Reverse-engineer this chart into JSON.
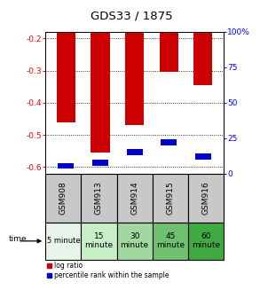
{
  "title": "GDS33 / 1875",
  "samples": [
    "GSM908",
    "GSM913",
    "GSM914",
    "GSM915",
    "GSM916"
  ],
  "time_labels": [
    "5 minute",
    "15\nminute",
    "30\nminute",
    "45\nminute",
    "60\nminute"
  ],
  "time_colors": [
    "#e8f5e8",
    "#c8eec8",
    "#a0d8a0",
    "#70c070",
    "#40aa40"
  ],
  "log_ratio": [
    -0.46,
    -0.555,
    -0.47,
    -0.305,
    -0.345
  ],
  "percentile": [
    3.5,
    5.5,
    13.0,
    20.0,
    10.0
  ],
  "ylim_left": [
    -0.62,
    -0.18
  ],
  "ylim_right": [
    0,
    100
  ],
  "yticks_left": [
    -0.6,
    -0.5,
    -0.4,
    -0.3,
    -0.2
  ],
  "yticks_right": [
    0,
    25,
    50,
    75,
    100
  ],
  "bar_width": 0.55,
  "red_color": "#cc0000",
  "blue_color": "#0000cc",
  "background_color": "#ffffff",
  "cell_color": "#c8c8c8",
  "legend_labels": [
    "log ratio",
    "percentile rank within the sample"
  ]
}
